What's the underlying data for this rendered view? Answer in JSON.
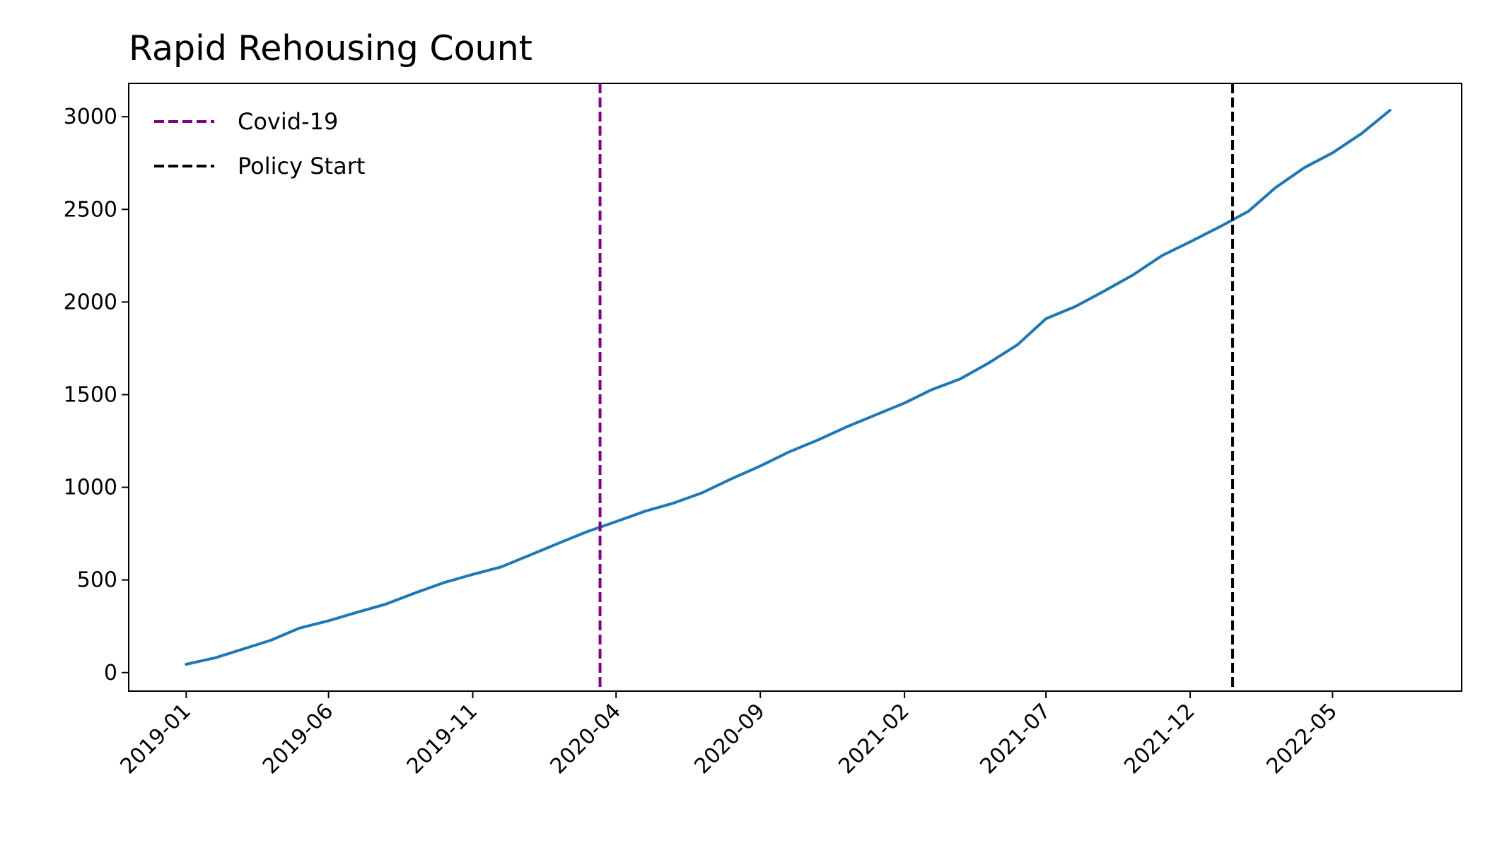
{
  "chart_data": {
    "type": "line",
    "title": "Rapid Rehousing Count",
    "xlabel": "",
    "ylabel": "",
    "x_tick_labels": [
      "2019-01",
      "2019-06",
      "2019-11",
      "2020-04",
      "2020-09",
      "2021-02",
      "2021-07",
      "2021-12",
      "2022-05"
    ],
    "x_ticks": [
      "2019-01-01",
      "2019-06-01",
      "2019-11-01",
      "2020-04-01",
      "2020-09-01",
      "2021-02-01",
      "2021-07-01",
      "2021-12-01",
      "2022-05-01"
    ],
    "y_ticks": [
      0,
      500,
      1000,
      1500,
      2000,
      2500,
      3000
    ],
    "y_tick_labels": [
      "0",
      "500",
      "1000",
      "1500",
      "2000",
      "2500",
      "3000"
    ],
    "xlim": [
      "2018-11-01",
      "2022-09-15"
    ],
    "ylim": [
      -100,
      3180
    ],
    "grid": false,
    "legend_position": "upper-left",
    "series": [
      {
        "color": "#1f77b4",
        "x": [
          "2019-01-01",
          "2019-02-01",
          "2019-03-01",
          "2019-04-01",
          "2019-05-01",
          "2019-06-01",
          "2019-07-01",
          "2019-08-01",
          "2019-09-01",
          "2019-10-01",
          "2019-11-01",
          "2019-12-01",
          "2020-01-01",
          "2020-02-01",
          "2020-03-01",
          "2020-04-01",
          "2020-05-01",
          "2020-06-01",
          "2020-07-01",
          "2020-08-01",
          "2020-09-01",
          "2020-10-01",
          "2020-11-01",
          "2020-12-01",
          "2021-01-01",
          "2021-02-01",
          "2021-03-01",
          "2021-04-01",
          "2021-05-01",
          "2021-06-01",
          "2021-07-01",
          "2021-08-01",
          "2021-09-01",
          "2021-10-01",
          "2021-11-01",
          "2021-12-01",
          "2022-01-01",
          "2022-02-01",
          "2022-03-01",
          "2022-04-01",
          "2022-05-01",
          "2022-06-01",
          "2022-07-01"
        ],
        "y": [
          45,
          80,
          125,
          175,
          240,
          280,
          325,
          370,
          430,
          485,
          530,
          570,
          635,
          700,
          760,
          815,
          870,
          915,
          970,
          1045,
          1115,
          1190,
          1255,
          1325,
          1390,
          1455,
          1525,
          1585,
          1670,
          1770,
          1910,
          1975,
          2060,
          2145,
          2250,
          2325,
          2405,
          2490,
          2615,
          2725,
          2805,
          2910,
          3035
        ]
      }
    ],
    "vlines": [
      {
        "name": "Covid-19",
        "x": "2020-03-15",
        "color": "#800080",
        "style": "dashed"
      },
      {
        "name": "Policy Start",
        "x": "2022-01-15",
        "color": "#000000",
        "style": "dashed"
      }
    ]
  }
}
